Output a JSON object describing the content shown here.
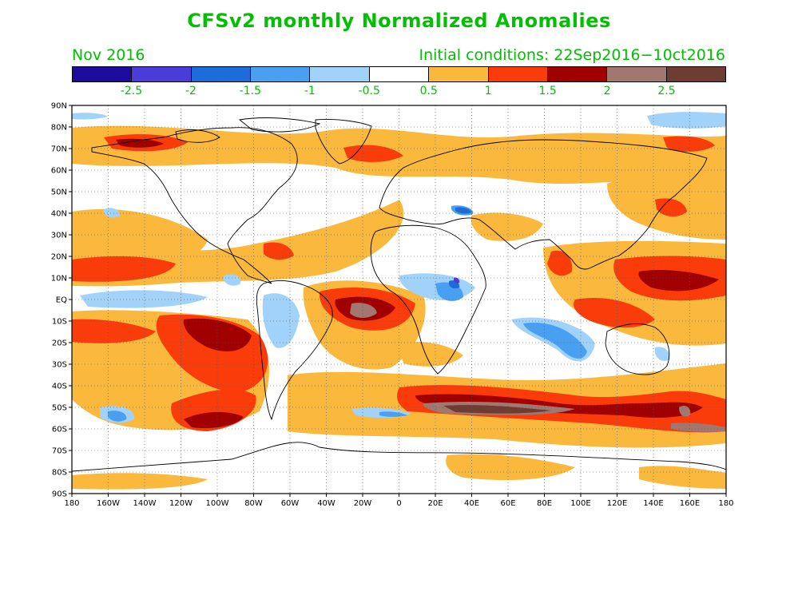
{
  "title": "CFSv2 monthly Normalized Anomalies",
  "forecast_month": "Nov 2016",
  "initial_conditions": "Initial conditions: 22Sep2016−10ct2016",
  "colorbar": {
    "colors": [
      "#1e0a9c",
      "#4a3cd8",
      "#1c6cdc",
      "#4aa0f0",
      "#a0d2fa",
      "#ffffff",
      "#fab83c",
      "#fa3c0a",
      "#a00000",
      "#a07870",
      "#6e3c32"
    ],
    "labels": [
      "-2.5",
      "-2",
      "-1.5",
      "-1",
      "-0.5",
      "0.5",
      "1",
      "1.5",
      "2",
      "2.5"
    ]
  },
  "map": {
    "lat_labels": [
      "90N",
      "80N",
      "70N",
      "60N",
      "50N",
      "40N",
      "30N",
      "20N",
      "10N",
      "EQ",
      "10S",
      "20S",
      "30S",
      "40S",
      "50S",
      "60S",
      "70S",
      "80S",
      "90S"
    ],
    "lon_labels": [
      "180",
      "160W",
      "140W",
      "120W",
      "100W",
      "80W",
      "60W",
      "40W",
      "20W",
      "0",
      "20E",
      "40E",
      "60E",
      "80E",
      "100E",
      "120E",
      "140E",
      "160E",
      "180"
    ]
  }
}
